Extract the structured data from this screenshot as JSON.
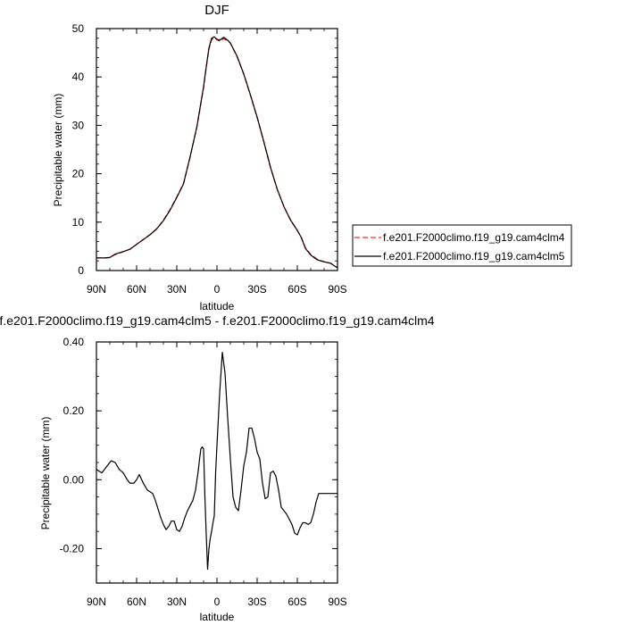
{
  "chart_data": [
    {
      "type": "line",
      "title": "DJF",
      "xlabel": "latitude",
      "ylabel": "Precipitable water (mm)",
      "x_ticks": [
        "90N",
        "60N",
        "30N",
        "0",
        "30S",
        "60S",
        "90S"
      ],
      "y_ticks": [
        "0",
        "10",
        "20",
        "30",
        "40",
        "50"
      ],
      "xlim": [
        90,
        -90
      ],
      "ylim": [
        0,
        50
      ],
      "legend": "right",
      "series": [
        {
          "name": "f.e201.F2000climo.f19_g19.cam4clm4",
          "color": "#ff0000",
          "dash": "dashed",
          "x": [
            90,
            84,
            80,
            76,
            70,
            65,
            62,
            58,
            55,
            50,
            45,
            40,
            35,
            30,
            25,
            20,
            15,
            10,
            8,
            6,
            4,
            2,
            0,
            -2,
            -5,
            -8,
            -10,
            -15,
            -20,
            -25,
            -30,
            -35,
            -40,
            -45,
            -50,
            -55,
            -60,
            -63,
            -66,
            -70,
            -75,
            -80,
            -85,
            -88,
            -90
          ],
          "y": [
            2.6,
            2.6,
            2.7,
            3.3,
            3.9,
            4.4,
            5.0,
            5.8,
            6.4,
            7.4,
            8.6,
            10.4,
            12.6,
            15.2,
            18.0,
            23.5,
            29.6,
            37.8,
            42.0,
            45.8,
            47.7,
            48.2,
            47.7,
            47.4,
            47.9,
            47.5,
            47.0,
            44.2,
            40.6,
            36.2,
            31.6,
            26.6,
            21.3,
            16.8,
            13.2,
            10.4,
            8.3,
            6.8,
            4.7,
            3.3,
            2.3,
            1.8,
            1.5,
            0.9,
            0.6
          ]
        },
        {
          "name": "f.e201.F2000climo.f19_g19.cam4clm5",
          "color": "#000000",
          "dash": "solid",
          "x": [
            90,
            84,
            80,
            76,
            70,
            65,
            62,
            58,
            55,
            50,
            45,
            40,
            35,
            30,
            25,
            20,
            15,
            10,
            8,
            6,
            4,
            2,
            0,
            -2,
            -5,
            -8,
            -10,
            -15,
            -20,
            -25,
            -30,
            -35,
            -40,
            -45,
            -50,
            -55,
            -60,
            -63,
            -66,
            -70,
            -75,
            -80,
            -85,
            -88,
            -90
          ],
          "y": [
            2.6,
            2.6,
            2.7,
            3.4,
            3.9,
            4.4,
            5.0,
            5.8,
            6.4,
            7.4,
            8.6,
            10.3,
            12.5,
            15.1,
            17.9,
            23.6,
            29.7,
            38.0,
            42.1,
            46.0,
            48.0,
            48.3,
            47.8,
            47.6,
            48.2,
            47.6,
            47.0,
            44.3,
            40.6,
            36.3,
            31.7,
            26.6,
            21.3,
            16.8,
            13.2,
            10.4,
            8.3,
            6.8,
            4.6,
            3.2,
            2.2,
            1.8,
            1.5,
            0.9,
            0.6
          ]
        }
      ]
    },
    {
      "type": "line",
      "title": "f.e201.F2000climo.f19_g19.cam4clm5 - f.e201.F2000climo.f19_g19.cam4clm4",
      "xlabel": "latitude",
      "ylabel": "Precipitable water (mm)",
      "x_ticks": [
        "90N",
        "60N",
        "30N",
        "0",
        "30S",
        "60S",
        "90S"
      ],
      "y_ticks": [
        "-0.20",
        "0.00",
        "0.20",
        "0.40"
      ],
      "xlim": [
        90,
        -90
      ],
      "ylim": [
        -0.3,
        0.4
      ],
      "series": [
        {
          "color": "#000000",
          "x": [
            90,
            86,
            82,
            79,
            76,
            73,
            70,
            67,
            65,
            62,
            60,
            58,
            55,
            52,
            50,
            48,
            46,
            44,
            42,
            40,
            38,
            36,
            34,
            32,
            30,
            28,
            26,
            24,
            22,
            20,
            18,
            16,
            14,
            13,
            12,
            11,
            10,
            9,
            8,
            7,
            6,
            5,
            4,
            3,
            2,
            1,
            0,
            -2,
            -4,
            -6,
            -8,
            -10,
            -12,
            -14,
            -16,
            -18,
            -20,
            -22,
            -24,
            -26,
            -28,
            -30,
            -32,
            -34,
            -36,
            -38,
            -40,
            -42,
            -44,
            -46,
            -48,
            -50,
            -52,
            -54,
            -56,
            -58,
            -60,
            -62,
            -64,
            -66,
            -68,
            -70,
            -72,
            -74,
            -76,
            -78,
            -80,
            -82,
            -84,
            -86,
            -88,
            -90
          ],
          "y": [
            0.03,
            0.02,
            0.04,
            0.055,
            0.05,
            0.03,
            0.02,
            0.0,
            -0.01,
            -0.01,
            0.0,
            0.015,
            -0.01,
            -0.03,
            -0.035,
            -0.04,
            -0.06,
            -0.085,
            -0.11,
            -0.13,
            -0.145,
            -0.135,
            -0.12,
            -0.12,
            -0.145,
            -0.15,
            -0.135,
            -0.11,
            -0.09,
            -0.075,
            -0.06,
            -0.03,
            0.025,
            0.06,
            0.09,
            0.095,
            0.09,
            -0.05,
            -0.16,
            -0.26,
            -0.2,
            -0.17,
            -0.15,
            -0.125,
            -0.105,
            0.02,
            0.1,
            0.25,
            0.37,
            0.31,
            0.18,
            0.06,
            -0.05,
            -0.08,
            -0.09,
            -0.03,
            0.04,
            0.08,
            0.15,
            0.15,
            0.12,
            0.08,
            0.06,
            -0.01,
            -0.055,
            -0.05,
            0.02,
            0.025,
            0.01,
            -0.03,
            -0.08,
            -0.09,
            -0.1,
            -0.115,
            -0.13,
            -0.155,
            -0.16,
            -0.14,
            -0.125,
            -0.125,
            -0.13,
            -0.125,
            -0.1,
            -0.065,
            -0.04,
            -0.04,
            -0.04,
            -0.04,
            -0.04,
            -0.04,
            -0.04,
            -0.04
          ]
        }
      ]
    }
  ]
}
